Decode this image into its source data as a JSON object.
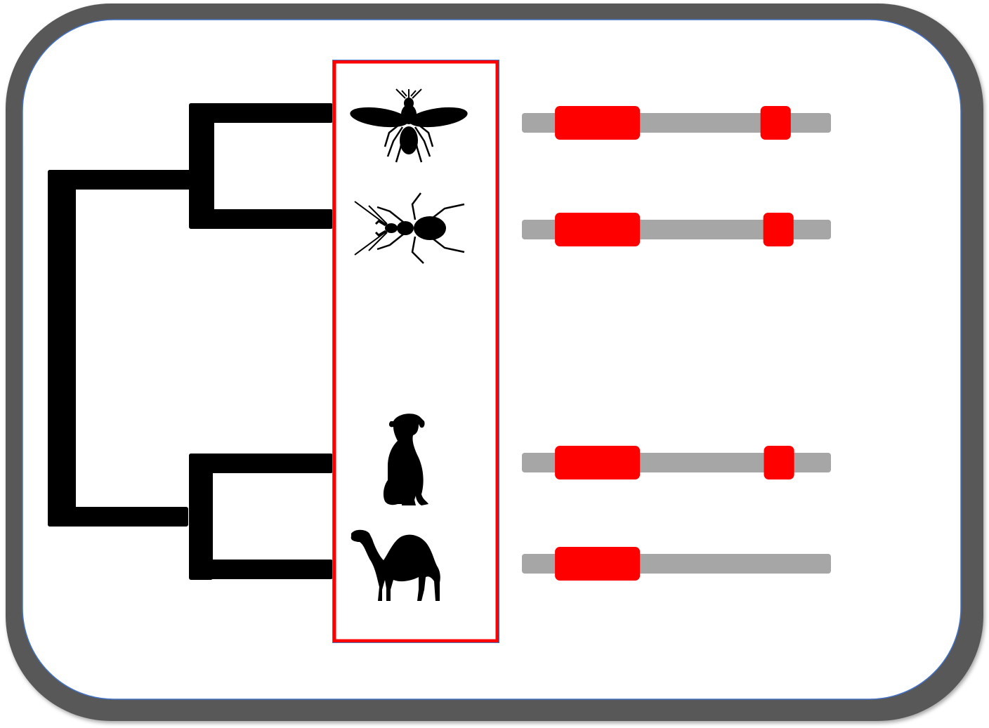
{
  "colors": {
    "frame": "#595959",
    "frame_edge": "#4472c4",
    "panel": "#ffffff",
    "tree": "#000000",
    "highlight_box": "#ff0000",
    "gene_backbone": "#a6a6a6",
    "gene_domain": "#ff0000",
    "silhouette": "#000000"
  },
  "taxa": [
    {
      "icon": "fly-silhouette-icon"
    },
    {
      "icon": "beetle-silhouette-icon"
    },
    {
      "icon": "dog-silhouette-icon"
    },
    {
      "icon": "camel-silhouette-icon"
    }
  ],
  "genes": [
    {
      "domains": [
        {
          "start": 0.107,
          "end": 0.382
        },
        {
          "start": 0.772,
          "end": 0.87
        }
      ]
    },
    {
      "domains": [
        {
          "start": 0.107,
          "end": 0.382
        },
        {
          "start": 0.781,
          "end": 0.879
        }
      ]
    },
    {
      "domains": [
        {
          "start": 0.107,
          "end": 0.382
        },
        {
          "start": 0.783,
          "end": 0.881
        }
      ]
    },
    {
      "domains": [
        {
          "start": 0.107,
          "end": 0.382
        }
      ]
    }
  ]
}
